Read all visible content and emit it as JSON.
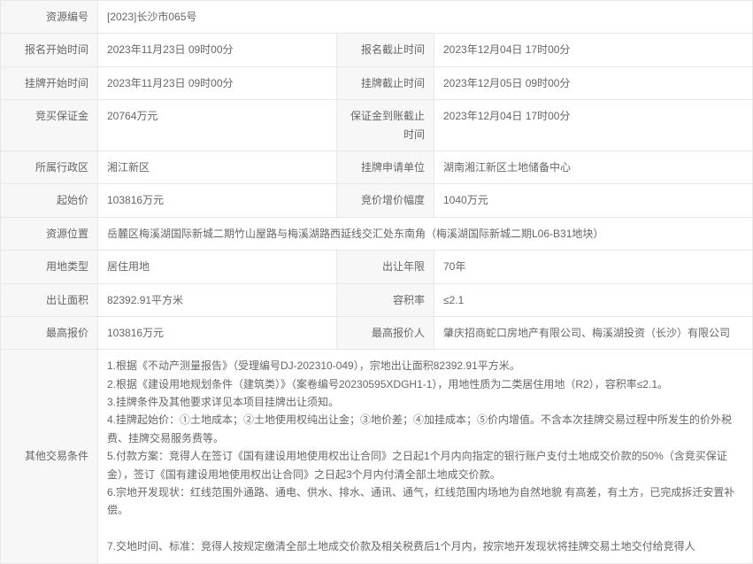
{
  "rows": [
    {
      "type": "full",
      "label": "资源编号",
      "value": "[2023]长沙市065号"
    },
    {
      "type": "pair",
      "label1": "报名开始时间",
      "value1": "2023年11月23日 09时00分",
      "label2": "报名截止时间",
      "value2": "2023年12月04日 17时00分"
    },
    {
      "type": "pair",
      "label1": "挂牌开始时间",
      "value1": "2023年11月23日 09时00分",
      "label2": "挂牌截止时间",
      "value2": "2023年12月05日 09时00分"
    },
    {
      "type": "pair",
      "label1": "竞买保证金",
      "value1": "20764万元",
      "label2": "保证金到账截止时间",
      "value2": "2023年12月04日 17时00分"
    },
    {
      "type": "pair",
      "label1": "所属行政区",
      "value1": "湘江新区",
      "label2": "挂牌申请单位",
      "value2": "湖南湘江新区土地储备中心"
    },
    {
      "type": "pair",
      "label1": "起始价",
      "value1": "103816万元",
      "label2": "竞价增价幅度",
      "value2": "1040万元"
    },
    {
      "type": "full",
      "label": "资源位置",
      "value": "岳麓区梅溪湖国际新城二期竹山屋路与梅溪湖路西延线交汇处东南角（梅溪湖国际新城二期L06-B31地块）"
    },
    {
      "type": "pair",
      "label1": "用地类型",
      "value1": "居住用地",
      "label2": "出让年限",
      "value2": "70年"
    },
    {
      "type": "pair",
      "label1": "出让面积",
      "value1": "82392.91平方米",
      "label2": "容积率",
      "value2": "≤2.1"
    },
    {
      "type": "pair",
      "label1": "最高报价",
      "value1": "103816万元",
      "label2": "最高报价人",
      "value2": "肇庆招商蛇口房地产有限公司、梅溪湖投资（长沙）有限公司"
    },
    {
      "type": "multi",
      "label": "其他交易条件",
      "lines": [
        "1.根据《不动产测量报告》（受理编号DJ-202310-049），宗地出让面积82392.91平方米。",
        "2.根据《建设用地规划条件（建筑类）》（案卷编号20230595XDGH1-1），用地性质为二类居住用地（R2），容积率≤2.1。",
        "3.挂牌条件及其他要求详见本项目挂牌出让须知。",
        "4.挂牌起始价：①土地成本；②土地使用权纯出让金；③地价差；④加挂成本；⑤价内增值。不含本次挂牌交易过程中所发生的价外税费、挂牌交易服务费等。",
        "5.付款方案：竞得人在签订《国有建设用地使用权出让合同》之日起1个月内向指定的银行账户支付土地成交价款的50%（含竞买保证金），签订《国有建设用地使用权出让合同》之日起3个月内付清全部土地成交价款。",
        "6.宗地开发现状：红线范围外通路、通电、供水、排水、通讯、通气，红线范围内场地为自然地貌 有高差，有土方，已完成拆迁安置补偿。",
        "",
        "7.交地时间、标准：竞得人按规定缴清全部土地成交价款及相关税费后1个月内，按宗地开发现状将挂牌交易土地交付给竞得人"
      ]
    }
  ]
}
